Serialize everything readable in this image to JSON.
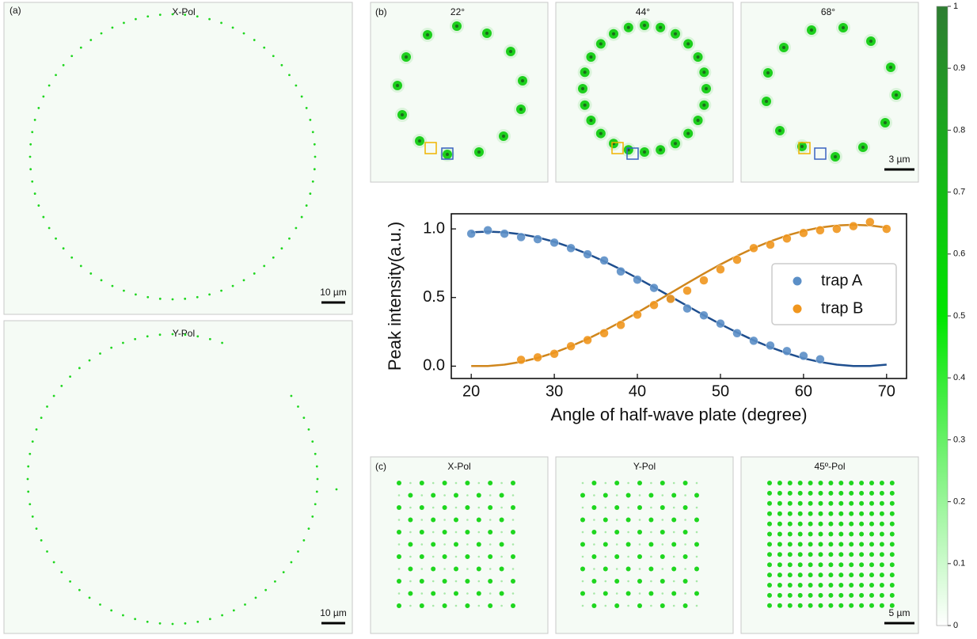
{
  "panels": {
    "a": {
      "label": "(a)",
      "images": [
        {
          "title": "X-Pol",
          "scale_bar": "10 µm"
        },
        {
          "title": "Y-Pol",
          "scale_bar": "10 µm"
        }
      ]
    },
    "b": {
      "label": "(b)",
      "images": [
        {
          "title": "22°"
        },
        {
          "title": "44°"
        },
        {
          "title": "68°",
          "scale_bar": "3 µm"
        }
      ]
    },
    "c": {
      "label": "(c)",
      "images": [
        {
          "title": "X-Pol"
        },
        {
          "title": "Y-Pol"
        },
        {
          "title": "45º-Pol",
          "scale_bar": "5 µm"
        }
      ]
    }
  },
  "chart_data": [
    {
      "type": "scatter",
      "x_label": "Angle of half-wave plate (degree)",
      "y_label": "Peak intensity(a.u.)",
      "xlim": [
        17.6,
        72.4
      ],
      "ylim": [
        -0.09,
        1.11
      ],
      "xticks": [
        20,
        30,
        40,
        50,
        60,
        70
      ],
      "yticks": [
        {
          "value": 0,
          "label": "0.0"
        },
        {
          "value": 0.5,
          "label": "0.5"
        },
        {
          "value": 1,
          "label": "1.0"
        }
      ],
      "legend": "right",
      "series": [
        {
          "name": "trap A",
          "color": "#5b8fc7",
          "fit_color": "#1f4f8f",
          "x": [
            20,
            22,
            24,
            26,
            28,
            30,
            32,
            34,
            36,
            38,
            40,
            42,
            44,
            46,
            48,
            50,
            52,
            54,
            56,
            58,
            60,
            62
          ],
          "values": [
            0.965,
            0.99,
            0.965,
            0.94,
            0.925,
            0.9,
            0.86,
            0.815,
            0.77,
            0.69,
            0.63,
            0.57,
            0.49,
            0.42,
            0.37,
            0.31,
            0.24,
            0.185,
            0.15,
            0.11,
            0.075,
            0.05
          ],
          "fit_x": [
            20,
            22,
            24,
            26,
            28,
            30,
            32,
            34,
            36,
            38,
            40,
            42,
            44,
            46,
            48,
            50,
            52,
            54,
            56,
            58,
            60,
            62,
            64,
            66,
            68,
            70
          ],
          "fit_values": [
            0.975,
            0.98,
            0.975,
            0.961,
            0.938,
            0.906,
            0.865,
            0.818,
            0.764,
            0.705,
            0.641,
            0.575,
            0.507,
            0.439,
            0.371,
            0.306,
            0.245,
            0.188,
            0.138,
            0.094,
            0.057,
            0.03,
            0.011,
            0.001,
            0.001,
            0.011
          ]
        },
        {
          "name": "trap B",
          "color": "#f0961e",
          "fit_color": "#d0861c",
          "x": [
            26,
            28,
            30,
            32,
            34,
            36,
            38,
            40,
            42,
            44,
            46,
            48,
            50,
            52,
            54,
            56,
            58,
            60,
            62,
            64,
            66,
            68,
            70
          ],
          "values": [
            0.046,
            0.064,
            0.09,
            0.145,
            0.19,
            0.24,
            0.3,
            0.375,
            0.445,
            0.49,
            0.55,
            0.625,
            0.705,
            0.775,
            0.86,
            0.885,
            0.93,
            0.97,
            0.99,
            1.0,
            1.02,
            1.05,
            1.0
          ],
          "fit_x": [
            20,
            22,
            24,
            26,
            28,
            30,
            32,
            34,
            36,
            38,
            40,
            42,
            44,
            46,
            48,
            50,
            52,
            54,
            56,
            58,
            60,
            62,
            64,
            66,
            68,
            70
          ],
          "fit_values": [
            0.001,
            0.001,
            0.011,
            0.031,
            0.06,
            0.098,
            0.145,
            0.198,
            0.258,
            0.322,
            0.39,
            0.461,
            0.533,
            0.604,
            0.674,
            0.741,
            0.803,
            0.86,
            0.909,
            0.952,
            0.985,
            1.01,
            1.025,
            1.03,
            1.025,
            1.01
          ]
        }
      ]
    },
    {
      "type": "colorbar",
      "ylim": [
        0,
        1
      ],
      "yticks": [
        0,
        0.1,
        0.2,
        0.3,
        0.4,
        0.5,
        0.6,
        0.7,
        0.8,
        0.9,
        1
      ],
      "colors": [
        "#ffffff",
        "#00e600",
        "#2e7d32"
      ]
    }
  ]
}
